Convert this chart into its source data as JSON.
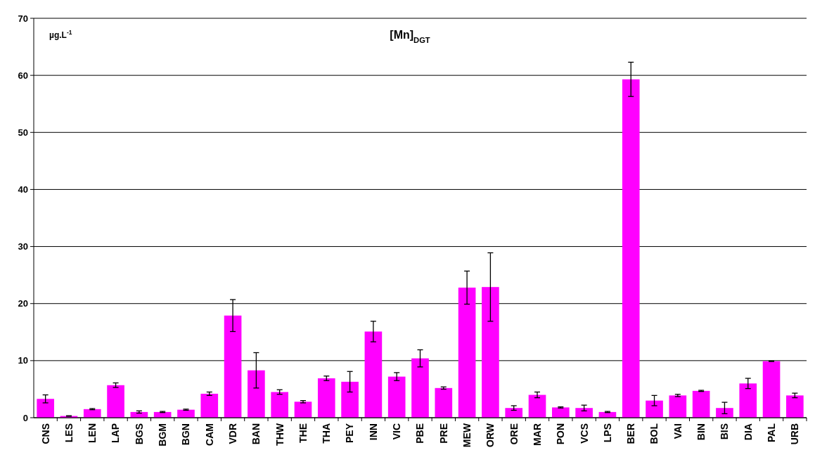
{
  "chart_data": {
    "type": "bar",
    "title": "[Mn]$_{DGT}$",
    "ylabel": "µg.L$^{-1}$",
    "categories": [
      "CNS",
      "LES",
      "LEN",
      "LAP",
      "BGS",
      "BGM",
      "BGN",
      "CAM",
      "VDR",
      "BAN",
      "THW",
      "THE",
      "THA",
      "PEY",
      "INN",
      "VIC",
      "PBE",
      "PRE",
      "MEW",
      "ORW",
      "ORE",
      "MAR",
      "PON",
      "VCS",
      "LPS",
      "BER",
      "BOL",
      "VAI",
      "BIN",
      "BIS",
      "DIA",
      "PAL",
      "URB"
    ],
    "values": [
      3.3,
      0.3,
      1.5,
      5.7,
      1.0,
      1.0,
      1.4,
      4.2,
      17.9,
      8.3,
      4.5,
      2.8,
      6.9,
      6.3,
      15.1,
      7.2,
      10.4,
      5.2,
      22.8,
      22.9,
      1.7,
      4.0,
      1.8,
      1.7,
      1.0,
      59.3,
      3.0,
      3.9,
      4.7,
      1.7,
      6.0,
      9.9,
      3.9
    ],
    "errors": [
      0.7,
      0.05,
      0.1,
      0.4,
      0.2,
      0.1,
      0.1,
      0.3,
      2.8,
      3.1,
      0.4,
      0.2,
      0.4,
      1.8,
      1.8,
      0.7,
      1.5,
      0.2,
      2.9,
      6.0,
      0.4,
      0.5,
      0.1,
      0.5,
      0.1,
      3.0,
      0.9,
      0.2,
      0.1,
      1.0,
      0.9,
      0.05,
      0.4
    ],
    "color": "#ff00ff",
    "ylim": [
      0,
      70
    ],
    "yticks": [
      0,
      10,
      20,
      30,
      40,
      50,
      60,
      70
    ],
    "grid": "y"
  }
}
